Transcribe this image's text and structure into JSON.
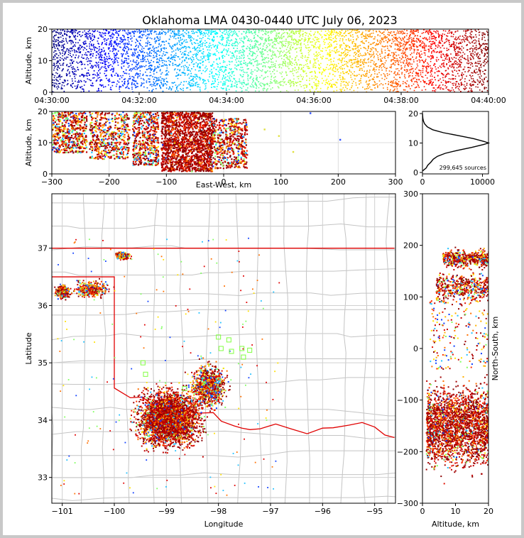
{
  "title": "Oklahoma LMA 0430-0440 UTC July 06, 2023",
  "chart_data": [
    {
      "id": "time-height",
      "type": "scatter",
      "xlabel": "",
      "ylabel": "Altitude, km",
      "x_ticks": [
        "04:30:00",
        "04:32:00",
        "04:34:00",
        "04:36:00",
        "04:38:00",
        "04:40:00"
      ],
      "xlim": [
        "04:30:00",
        "04:40:00"
      ],
      "ylim": [
        0,
        20
      ],
      "y_ticks": [
        0,
        10,
        20
      ],
      "color_by": "time",
      "colormap": "jet",
      "density": "dense continuous band 1-20 km, heaviest 12-18 km"
    },
    {
      "id": "ew-altitude",
      "type": "scatter",
      "xlabel": "East-West, km",
      "ylabel": "Altitude, km",
      "xlim": [
        -300,
        300
      ],
      "ylim": [
        0,
        20
      ],
      "x_ticks": [
        -300,
        -200,
        -100,
        0,
        100,
        200,
        300
      ],
      "y_ticks": [
        0,
        10,
        20
      ],
      "grid": true,
      "clusters": [
        {
          "x_range": [
            -300,
            -240
          ],
          "alt_range": [
            7,
            20
          ]
        },
        {
          "x_range": [
            -235,
            -165
          ],
          "alt_range": [
            5,
            20
          ]
        },
        {
          "x_range": [
            -160,
            -115
          ],
          "alt_range": [
            3,
            20
          ]
        },
        {
          "x_range": [
            -110,
            -20
          ],
          "alt_range": [
            1,
            20
          ]
        },
        {
          "x_range": [
            -20,
            40
          ],
          "alt_range": [
            2,
            18
          ]
        }
      ],
      "outliers": [
        [
          150,
          19.7
        ],
        [
          202,
          11.2
        ],
        [
          120,
          7.3
        ],
        [
          95,
          12.4
        ],
        [
          70,
          14.5
        ]
      ]
    },
    {
      "id": "altitude-histogram",
      "type": "line",
      "xlim": [
        0,
        11000
      ],
      "ylim": [
        0,
        20
      ],
      "x_ticks": [
        0,
        10000
      ],
      "y_ticks": [
        0,
        10,
        20
      ],
      "annotation": "299,645 sources",
      "profile": [
        [
          0,
          0.5
        ],
        [
          600,
          1.5
        ],
        [
          900,
          2.5
        ],
        [
          1400,
          3.5
        ],
        [
          1800,
          4.5
        ],
        [
          2500,
          5.5
        ],
        [
          3800,
          6.5
        ],
        [
          5800,
          7.5
        ],
        [
          8200,
          8.5
        ],
        [
          10200,
          9.5
        ],
        [
          11000,
          10
        ],
        [
          10300,
          10.5
        ],
        [
          8500,
          11.5
        ],
        [
          6000,
          12.5
        ],
        [
          3500,
          13.5
        ],
        [
          1700,
          14.5
        ],
        [
          800,
          15.5
        ],
        [
          350,
          16.5
        ],
        [
          150,
          17.5
        ],
        [
          60,
          18.5
        ],
        [
          20,
          19.5
        ],
        [
          5,
          20
        ]
      ]
    },
    {
      "id": "plan-view",
      "type": "scatter",
      "xlabel": "Longitude",
      "ylabel": "Latitude",
      "xlim": [
        -101.2,
        -94.6
      ],
      "ylim": [
        32.55,
        37.95
      ],
      "x_ticks": [
        -101,
        -100,
        -99,
        -98,
        -97,
        -96,
        -95
      ],
      "y_ticks": [
        33,
        34,
        35,
        36,
        37
      ],
      "x_tick_labels": [
        "−101",
        "−100",
        "−99",
        "−98",
        "−97",
        "−96",
        "−95"
      ],
      "grid": true,
      "overlay": "county boundaries (gray) and state boundary (red)",
      "clusters": [
        {
          "center": [
            -98.95,
            34.05
          ],
          "spread": [
            0.55,
            0.45
          ],
          "note": "main storm core"
        },
        {
          "center": [
            -98.2,
            34.6
          ],
          "spread": [
            0.3,
            0.35
          ],
          "note": "northeast extension"
        },
        {
          "center": [
            -100.45,
            36.3
          ],
          "spread": [
            0.3,
            0.12
          ],
          "note": "panhandle cell"
        },
        {
          "center": [
            -101.0,
            36.25
          ],
          "spread": [
            0.12,
            0.1
          ],
          "note": "western cell"
        },
        {
          "center": [
            -99.85,
            36.88
          ],
          "spread": [
            0.12,
            0.05
          ],
          "note": "northern cell"
        }
      ],
      "outlier_boxes": [
        [
          -98.0,
          35.45
        ],
        [
          -97.8,
          35.4
        ],
        [
          -97.95,
          35.25
        ],
        [
          -97.75,
          35.2
        ],
        [
          -97.55,
          35.25
        ],
        [
          -97.4,
          35.22
        ],
        [
          -97.52,
          35.1
        ],
        [
          -99.45,
          35.0
        ],
        [
          -99.4,
          34.8
        ],
        [
          -98.65,
          34.55
        ]
      ]
    },
    {
      "id": "altitude-ns",
      "type": "scatter",
      "xlabel": "Altitude, km",
      "ylabel": "North-South, km",
      "xlim": [
        0,
        20
      ],
      "ylim": [
        -300,
        300
      ],
      "x_ticks": [
        0,
        10,
        20
      ],
      "y_ticks": [
        -300,
        -200,
        -100,
        0,
        100,
        200,
        300
      ],
      "clusters": [
        {
          "ns_center": -150,
          "ns_spread": 70,
          "alt_range": [
            1,
            20
          ]
        },
        {
          "ns_center": 120,
          "ns_spread": 25,
          "alt_range": [
            4,
            20
          ]
        },
        {
          "ns_center": 175,
          "ns_spread": 15,
          "alt_range": [
            6,
            20
          ]
        }
      ]
    }
  ]
}
